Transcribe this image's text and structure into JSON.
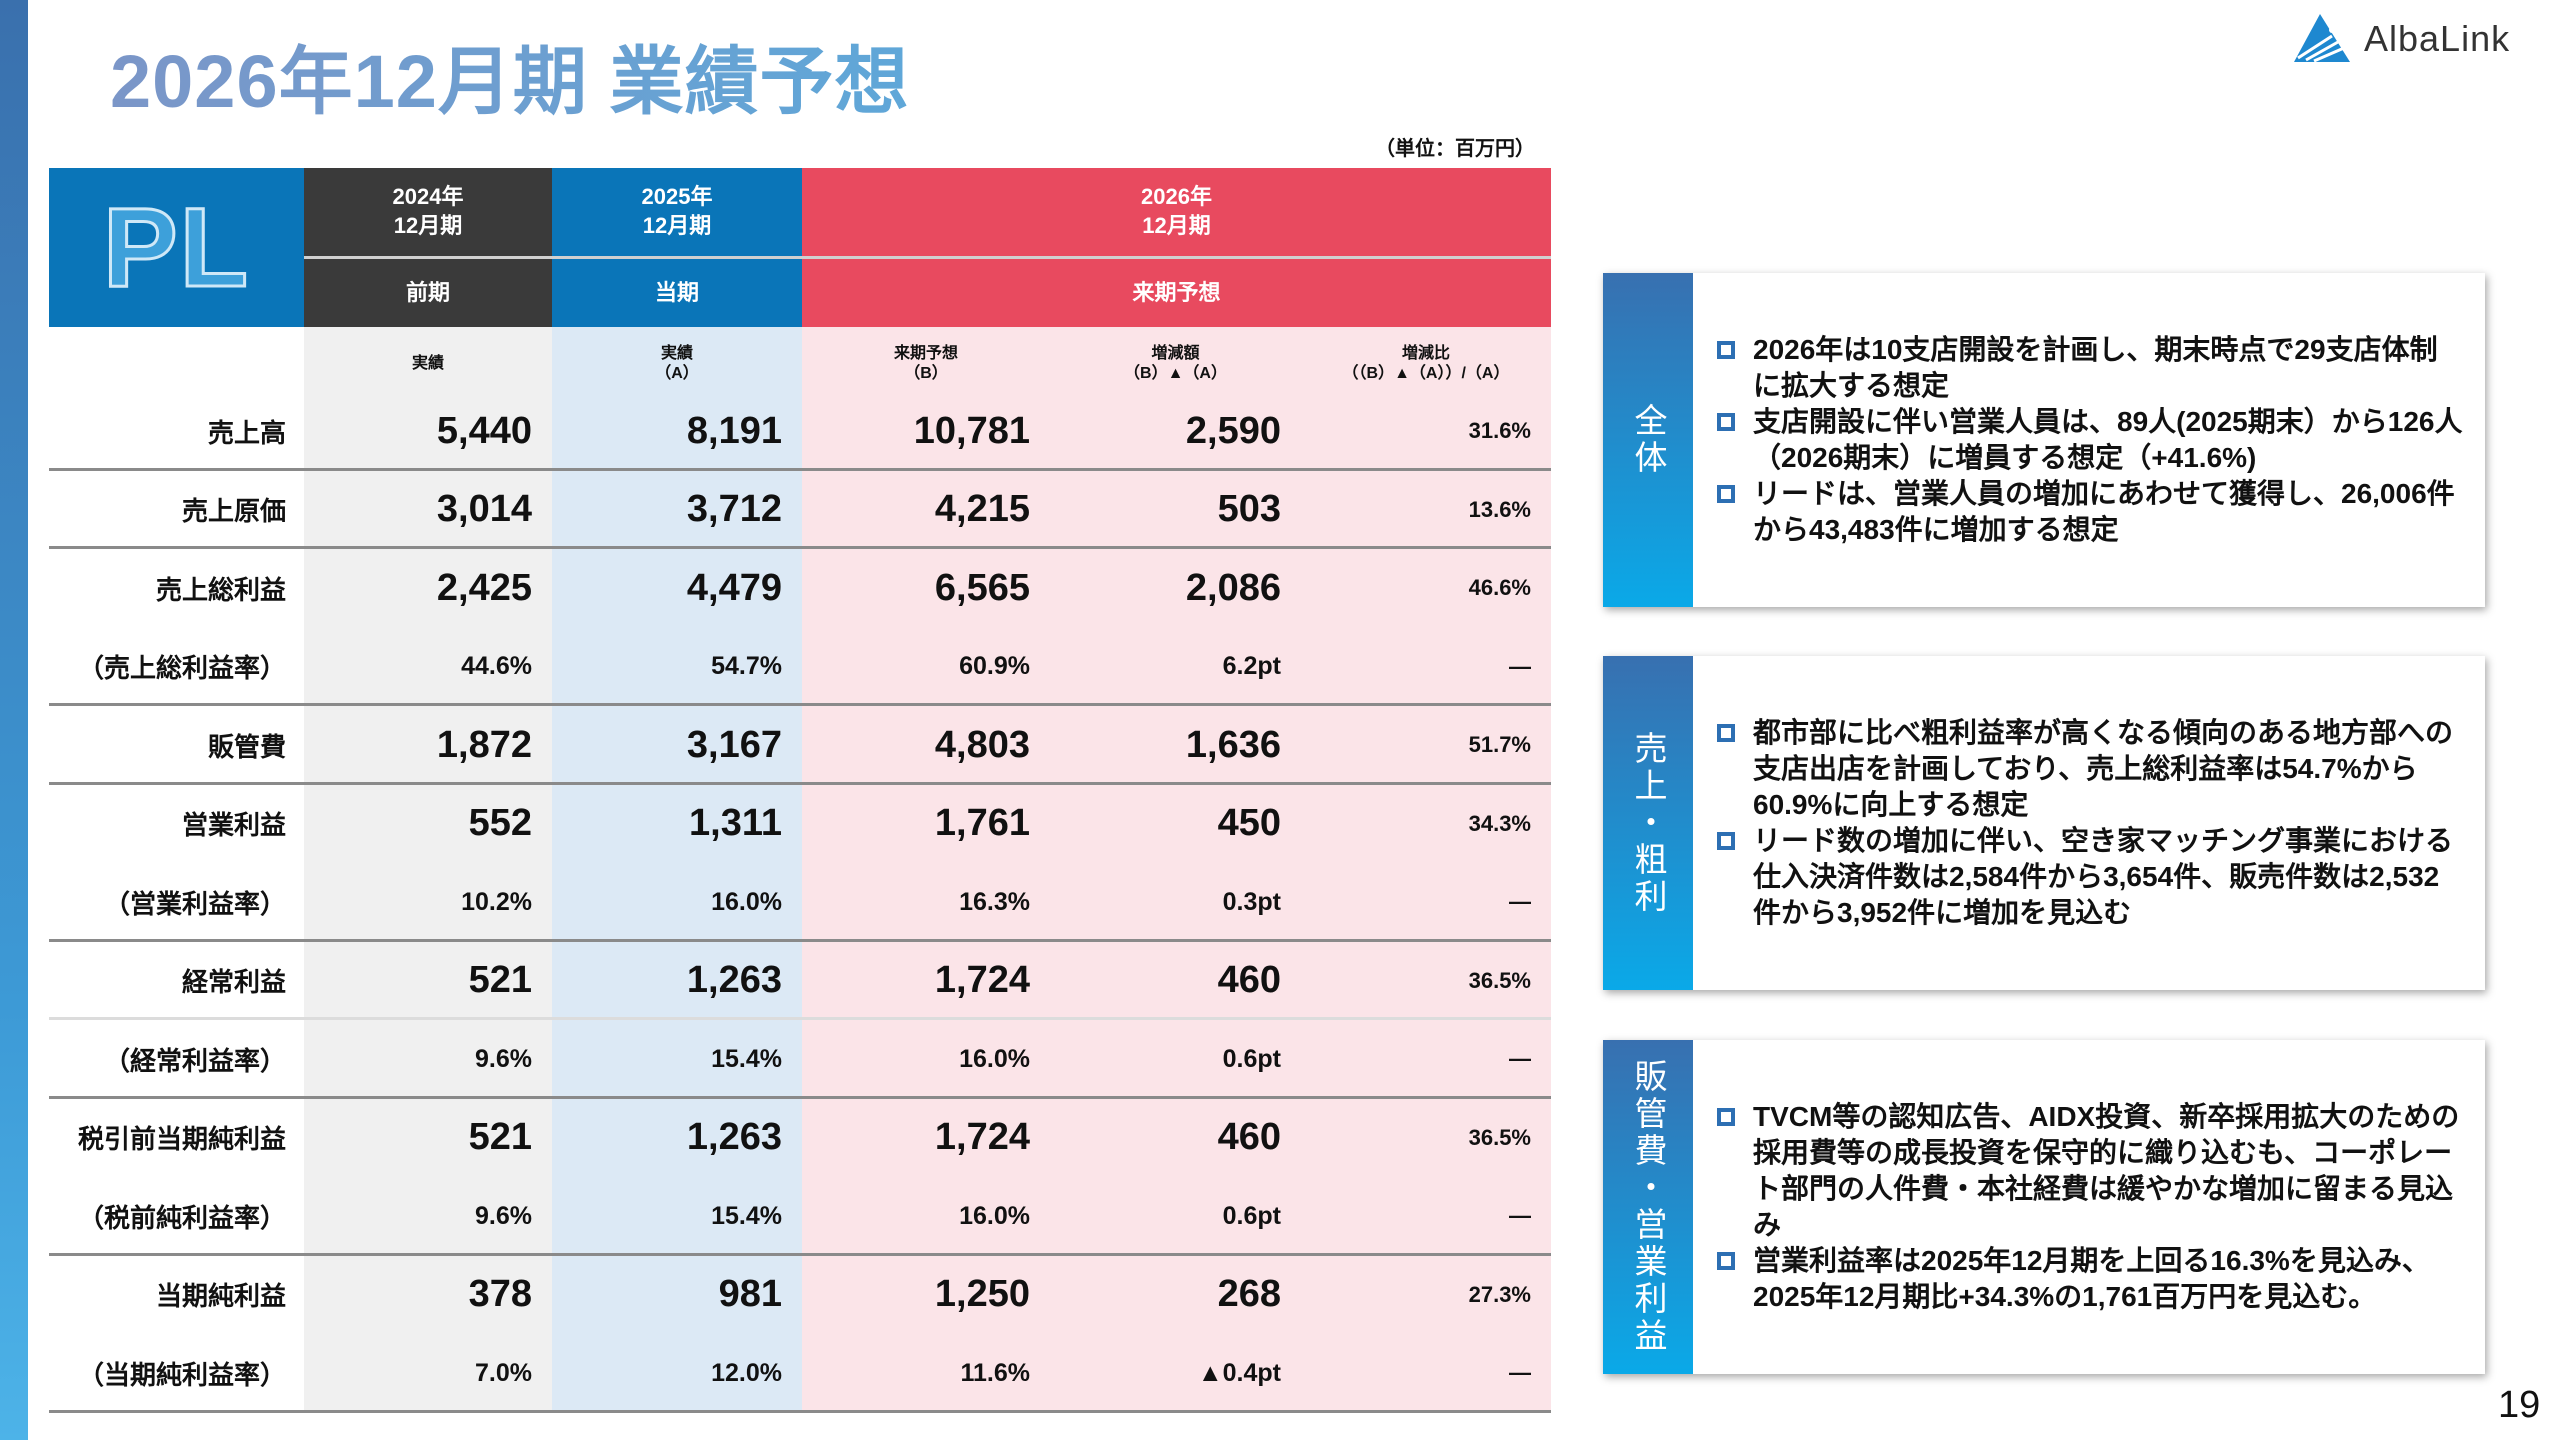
{
  "title": "2026年12月期 業績予想",
  "logo": {
    "text": "AlbaLink"
  },
  "unit": "（単位：百万円）",
  "table": {
    "pl_label": "PL",
    "periods": [
      {
        "year": "2024年",
        "term": "12月期",
        "tag": "前期",
        "color": "#3a3a3a",
        "bg": "#f0f0f0"
      },
      {
        "year": "2025年",
        "term": "12月期",
        "tag": "当期",
        "color": "#0a75b8",
        "bg": "#dce9f5"
      },
      {
        "year": "2026年",
        "term": "12月期",
        "tag": "来期予想",
        "color": "#e84a5f",
        "bg": "#fbe4e8"
      }
    ],
    "subheaders": [
      [
        "実績",
        ""
      ],
      [
        "実績",
        "（A）"
      ],
      [
        "来期予想",
        "（B）"
      ],
      [
        "増減額",
        "（B）▲（A）"
      ],
      [
        "増減比",
        "（（B）▲（A））/（A）"
      ]
    ],
    "rows": [
      {
        "label": "売上高",
        "values": [
          "5,440",
          "8,191",
          "10,781",
          "2,590",
          "31.6%"
        ]
      },
      {
        "label": "売上原価",
        "values": [
          "3,014",
          "3,712",
          "4,215",
          "503",
          "13.6%"
        ]
      },
      {
        "label": "売上総利益",
        "values": [
          "2,425",
          "4,479",
          "6,565",
          "2,086",
          "46.6%"
        ]
      },
      {
        "label": "（売上総利益率）",
        "values": [
          "44.6%",
          "54.7%",
          "60.9%",
          "6.2pt",
          "—"
        ]
      },
      {
        "label": "販管費",
        "values": [
          "1,872",
          "3,167",
          "4,803",
          "1,636",
          "51.7%"
        ]
      },
      {
        "label": "営業利益",
        "values": [
          "552",
          "1,311",
          "1,761",
          "450",
          "34.3%"
        ]
      },
      {
        "label": "（営業利益率）",
        "values": [
          "10.2%",
          "16.0%",
          "16.3%",
          "0.3pt",
          "—"
        ]
      },
      {
        "label": "経常利益",
        "values": [
          "521",
          "1,263",
          "1,724",
          "460",
          "36.5%"
        ]
      },
      {
        "label": "（経常利益率）",
        "values": [
          "9.6%",
          "15.4%",
          "16.0%",
          "0.6pt",
          "—"
        ]
      },
      {
        "label": "税引前当期純利益",
        "values": [
          "521",
          "1,263",
          "1,724",
          "460",
          "36.5%"
        ]
      },
      {
        "label": "（税前純利益率）",
        "values": [
          "9.6%",
          "15.4%",
          "16.0%",
          "0.6pt",
          "—"
        ]
      },
      {
        "label": "当期純利益",
        "values": [
          "378",
          "981",
          "1,250",
          "268",
          "27.3%"
        ]
      },
      {
        "label": "（当期純利益率）",
        "values": [
          "7.0%",
          "12.0%",
          "11.6%",
          "▲0.4pt",
          "—"
        ]
      }
    ]
  },
  "boxes": [
    {
      "label": "全体",
      "bullets": [
        "2026年は10支店開設を計画し、期末時点で29支店体制に拡大する想定",
        "支店開設に伴い営業人員は、89人(2025期末）から126人（2026期末）に増員する想定（+41.6%)",
        "リードは、営業人員の増加にあわせて獲得し、26,006件から43,483件に増加する想定"
      ]
    },
    {
      "label": "売上・粗利",
      "bullets": [
        "都市部に比べ粗利益率が高くなる傾向のある地方部への支店出店を計画しており、売上総利益率は54.7%から60.9%に向上する想定",
        "リード数の増加に伴い、空き家マッチング事業における仕入決済件数は2,584件から3,654件、販売件数は2,532件から3,952件に増加を見込む"
      ]
    },
    {
      "label": "販管費・営業利益",
      "bullets": [
        "TVCM等の認知広告、AIDX投資、新卒採用拡大のための採用費等の成長投資を保守的に織り込むも、コーポレート部門の人件費・本社経費は緩やかな増加に留まる見込み",
        "営業利益率は2025年12月期を上回る16.3%を見込み、2025年12月期比+34.3%の1,761百万円を見込む。"
      ]
    }
  ],
  "page_number": "19"
}
